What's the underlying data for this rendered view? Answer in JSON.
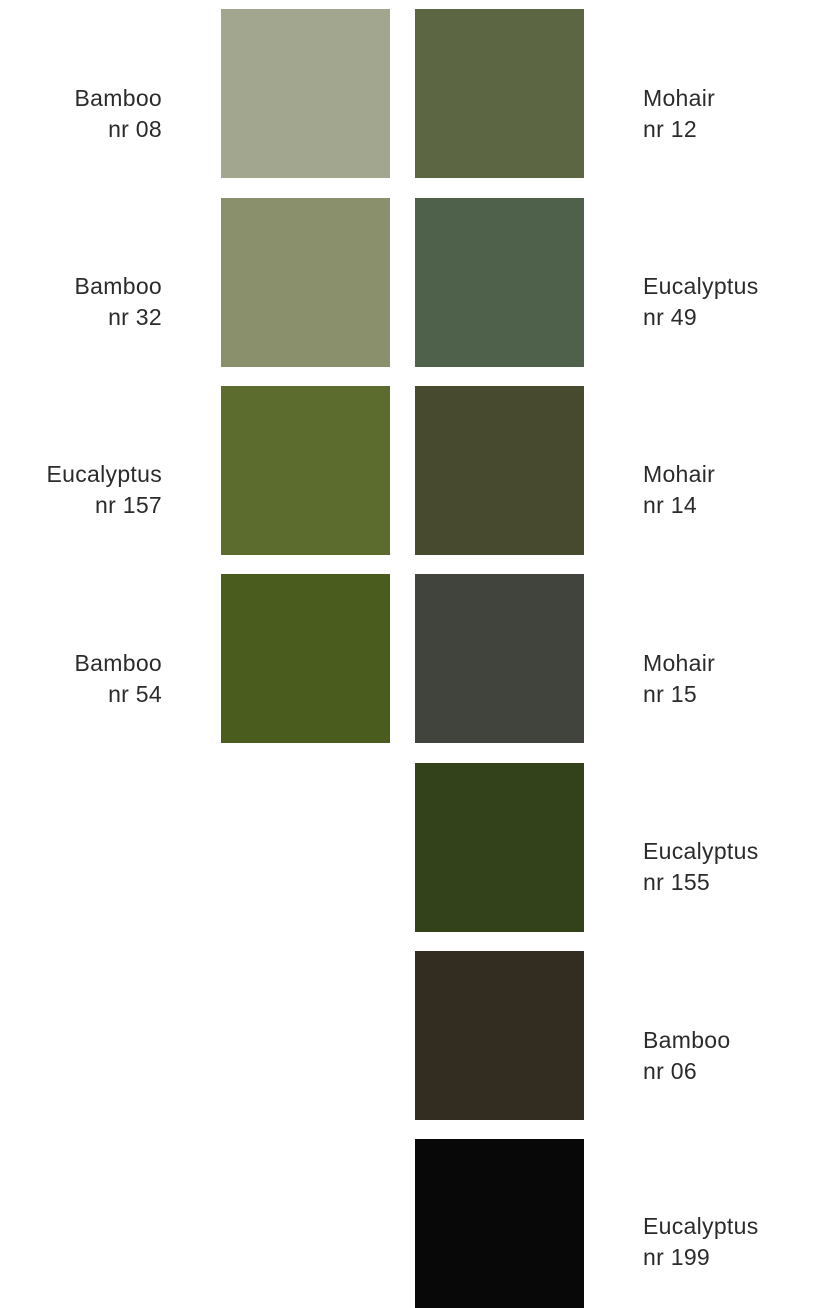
{
  "left_column": [
    {
      "name": "Bamboo",
      "number": "nr 08",
      "color": "#a2a68f"
    },
    {
      "name": "Bamboo",
      "number": "nr 32",
      "color": "#8a8f6c"
    },
    {
      "name": "Eucalyptus",
      "number": "nr 157",
      "color": "#5b6c2e"
    },
    {
      "name": "Bamboo",
      "number": "nr 54",
      "color": "#4b5c1f"
    }
  ],
  "right_column": [
    {
      "name": "Mohair",
      "number": "nr 12",
      "color": "#5c6642"
    },
    {
      "name": "Eucalyptus",
      "number": "nr 49",
      "color": "#50614b"
    },
    {
      "name": "Mohair",
      "number": "nr 14",
      "color": "#484a30"
    },
    {
      "name": "Mohair",
      "number": "nr 15",
      "color": "#41433d"
    },
    {
      "name": "Eucalyptus",
      "number": "nr 155",
      "color": "#33421a"
    },
    {
      "name": "Bamboo",
      "number": "nr 06",
      "color": "#322d20"
    },
    {
      "name": "Eucalyptus",
      "number": "nr 199",
      "color": "#080808"
    }
  ]
}
